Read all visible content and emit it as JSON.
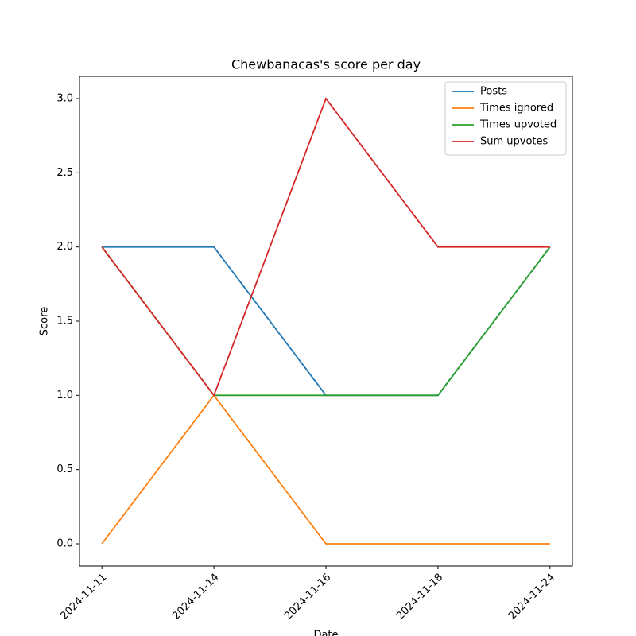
{
  "chart_data": {
    "type": "line",
    "title": "Chewbanacas's score per day",
    "xlabel": "Date",
    "ylabel": "Score",
    "categories": [
      "2024-11-11",
      "2024-11-14",
      "2024-11-16",
      "2024-11-18",
      "2024-11-24"
    ],
    "series": [
      {
        "name": "Posts",
        "color": "#1f77b4",
        "values": [
          2,
          2,
          1,
          1,
          2
        ]
      },
      {
        "name": "Times ignored",
        "color": "#ff7f0e",
        "values": [
          0,
          1,
          0,
          0,
          0
        ]
      },
      {
        "name": "Times upvoted",
        "color": "#2ca02c",
        "values": [
          2,
          1,
          1,
          1,
          2
        ]
      },
      {
        "name": "Sum upvotes",
        "color": "#d62728",
        "values": [
          2,
          1,
          3,
          2,
          2
        ]
      }
    ],
    "ylim": [
      -0.15,
      3.15
    ],
    "yticks": [
      {
        "value": 0,
        "label": "0.0"
      },
      {
        "value": 0.5,
        "label": "0.5"
      },
      {
        "value": 1,
        "label": "1.0"
      },
      {
        "value": 1.5,
        "label": "1.5"
      },
      {
        "value": 2,
        "label": "2.0"
      },
      {
        "value": 2.5,
        "label": "2.5"
      },
      {
        "value": 3,
        "label": "3.0"
      }
    ],
    "legend": "upper right",
    "grid": false
  }
}
